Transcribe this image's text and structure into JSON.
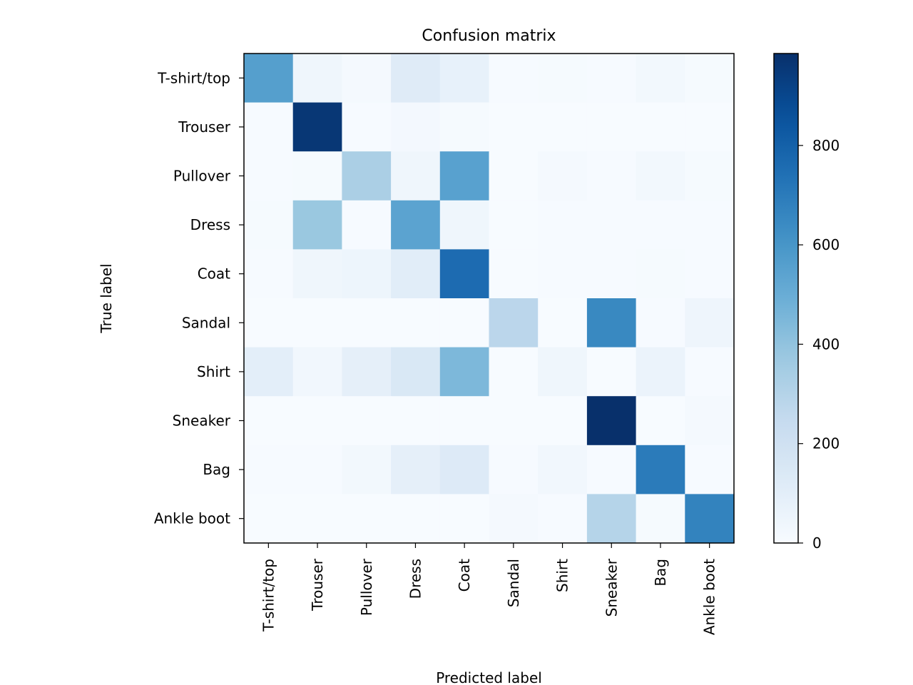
{
  "chart_data": {
    "type": "heatmap",
    "title": "Confusion matrix",
    "xlabel": "Predicted label",
    "ylabel": "True label",
    "colormap": "Blues",
    "colorbar": {
      "min": 0,
      "max": 985,
      "ticks": [
        0,
        200,
        400,
        600,
        800
      ]
    },
    "grid": false,
    "labels": [
      "T-shirt/top",
      "Trouser",
      "Pullover",
      "Dress",
      "Coat",
      "Sandal",
      "Shirt",
      "Sneaker",
      "Bag",
      "Ankle boot"
    ],
    "matrix": [
      [
        560,
        40,
        15,
        120,
        80,
        5,
        10,
        5,
        25,
        10
      ],
      [
        5,
        960,
        5,
        20,
        10,
        0,
        0,
        0,
        0,
        0
      ],
      [
        5,
        10,
        330,
        40,
        550,
        0,
        15,
        5,
        25,
        10
      ],
      [
        10,
        380,
        5,
        540,
        40,
        0,
        5,
        5,
        5,
        5
      ],
      [
        5,
        40,
        50,
        110,
        760,
        0,
        5,
        5,
        10,
        5
      ],
      [
        0,
        0,
        0,
        0,
        0,
        280,
        0,
        650,
        5,
        45
      ],
      [
        100,
        30,
        90,
        150,
        450,
        0,
        40,
        0,
        60,
        5
      ],
      [
        0,
        0,
        0,
        0,
        0,
        0,
        0,
        985,
        0,
        15
      ],
      [
        5,
        5,
        25,
        90,
        130,
        5,
        30,
        5,
        700,
        5
      ],
      [
        0,
        0,
        0,
        0,
        0,
        15,
        5,
        300,
        10,
        670
      ]
    ]
  }
}
